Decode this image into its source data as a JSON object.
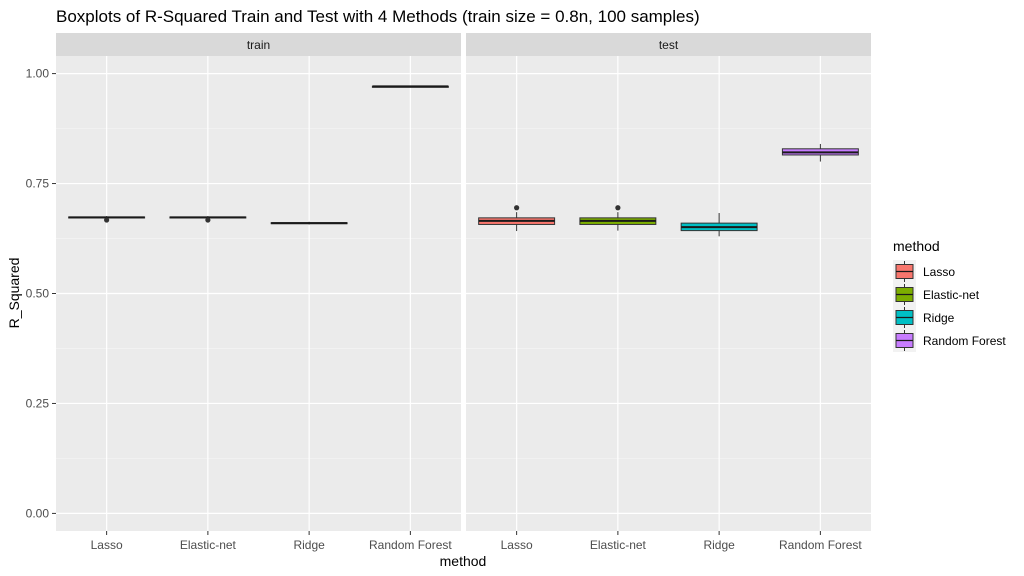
{
  "chart_data": {
    "type": "box",
    "title": "Boxplots of R-Squared Train and Test with 4 Methods (train size = 0.8n, 100 samples)",
    "xlabel": "method",
    "ylabel": "R_Squared",
    "ylim": [
      -0.04,
      1.04
    ],
    "yticks": [
      0.0,
      0.25,
      0.5,
      0.75,
      1.0
    ],
    "ytick_labels": [
      "0.00",
      "0.25",
      "0.50",
      "0.75",
      "1.00"
    ],
    "categories": [
      "Lasso",
      "Elastic-net",
      "Ridge",
      "Random Forest"
    ],
    "grid": true,
    "legend": {
      "title": "method",
      "position": "right",
      "entries": [
        {
          "label": "Lasso",
          "color": "#F8766D"
        },
        {
          "label": "Elastic-net",
          "color": "#7CAE00"
        },
        {
          "label": "Ridge",
          "color": "#00BFC4"
        },
        {
          "label": "Random Forest",
          "color": "#C77CFF"
        }
      ]
    },
    "panels": [
      {
        "name": "train",
        "boxes": [
          {
            "method": "Lasso",
            "min": 0.671,
            "q1": 0.672,
            "median": 0.673,
            "q3": 0.674,
            "max": 0.676,
            "outliers": [
              0.667
            ]
          },
          {
            "method": "Elastic-net",
            "min": 0.671,
            "q1": 0.672,
            "median": 0.673,
            "q3": 0.674,
            "max": 0.676,
            "outliers": [
              0.667
            ]
          },
          {
            "method": "Ridge",
            "min": 0.657,
            "q1": 0.659,
            "median": 0.66,
            "q3": 0.661,
            "max": 0.663,
            "outliers": []
          },
          {
            "method": "Random Forest",
            "min": 0.969,
            "q1": 0.97,
            "median": 0.971,
            "q3": 0.971,
            "max": 0.972,
            "outliers": []
          }
        ]
      },
      {
        "name": "test",
        "boxes": [
          {
            "method": "Lasso",
            "min": 0.642,
            "q1": 0.657,
            "median": 0.665,
            "q3": 0.672,
            "max": 0.685,
            "outliers": [
              0.695
            ]
          },
          {
            "method": "Elastic-net",
            "min": 0.643,
            "q1": 0.657,
            "median": 0.665,
            "q3": 0.672,
            "max": 0.685,
            "outliers": [
              0.695
            ]
          },
          {
            "method": "Ridge",
            "min": 0.63,
            "q1": 0.643,
            "median": 0.651,
            "q3": 0.66,
            "max": 0.683,
            "outliers": []
          },
          {
            "method": "Random Forest",
            "min": 0.8,
            "q1": 0.815,
            "median": 0.821,
            "q3": 0.829,
            "max": 0.84,
            "outliers": []
          }
        ]
      }
    ]
  }
}
